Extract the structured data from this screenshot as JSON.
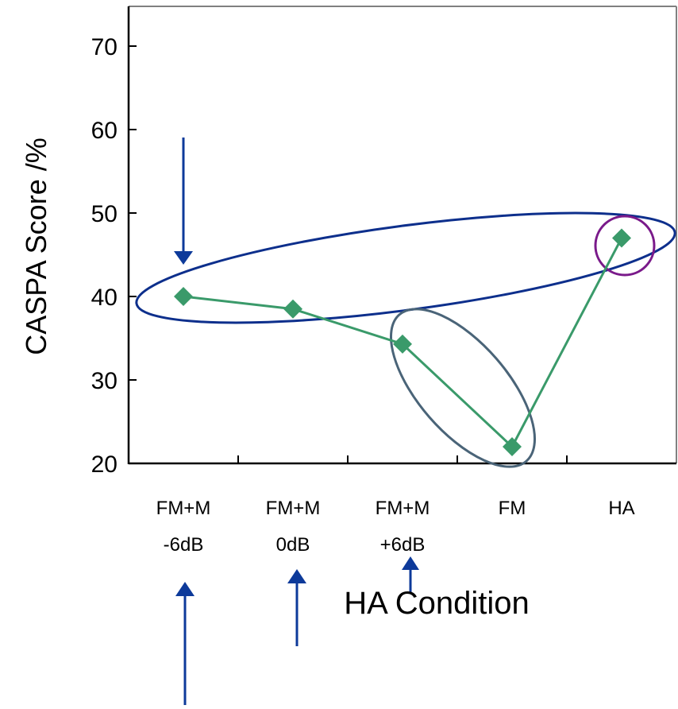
{
  "chart_data": {
    "type": "line",
    "title": "",
    "xlabel": "HA Condition",
    "ylabel": "CASPA Score /%",
    "ylim": [
      20,
      70
    ],
    "yticks": [
      20,
      30,
      40,
      50,
      60,
      70
    ],
    "categories": [
      [
        "FM+M",
        "-6dB"
      ],
      [
        "FM+M",
        "0dB"
      ],
      [
        "FM+M",
        "+6dB"
      ],
      [
        "FM",
        ""
      ],
      [
        "HA",
        ""
      ]
    ],
    "series": [
      {
        "values": [
          40,
          38.5,
          34.3,
          22,
          47
        ],
        "color": "#3a9a6a",
        "marker": "diamond"
      }
    ],
    "grid": false,
    "legend": "none",
    "annotations": {
      "ellipse_colors": [
        "#0d2f8c",
        "#4a6478",
        "#7a1a8a"
      ],
      "arrow_color": "#0d3a9a"
    }
  }
}
